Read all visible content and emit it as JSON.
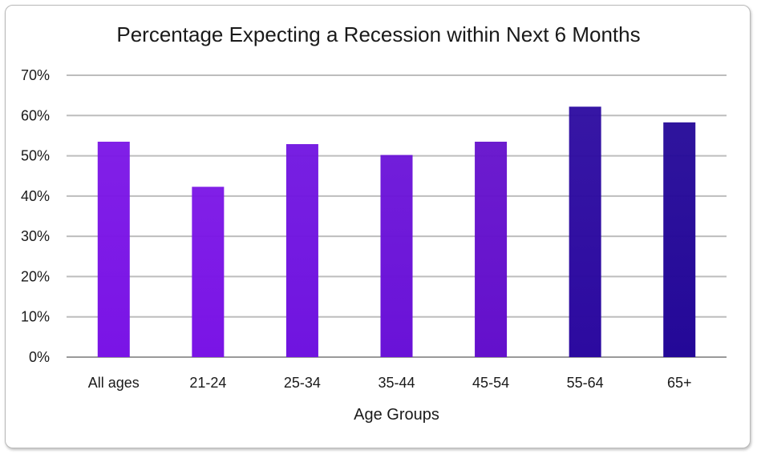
{
  "chart_data": {
    "type": "bar",
    "title": "Percentage Expecting a Recession within Next 6 Months",
    "xlabel": "Age Groups",
    "ylabel": "",
    "categories": [
      "All ages",
      "21-24",
      "25-34",
      "35-44",
      "45-54",
      "55-64",
      "65+"
    ],
    "values": [
      53.5,
      42.3,
      52.9,
      50.2,
      53.5,
      62.2,
      58.3
    ],
    "ylim": [
      0,
      70
    ],
    "yticks": [
      "0%",
      "10%",
      "20%",
      "30%",
      "40%",
      "50%",
      "60%",
      "70%"
    ],
    "grid": true,
    "colors": [
      "#7a14e6",
      "#7a14e6",
      "#7014e0",
      "#6a12d8",
      "#6410cc",
      "#2c0aa0",
      "#240898"
    ]
  }
}
